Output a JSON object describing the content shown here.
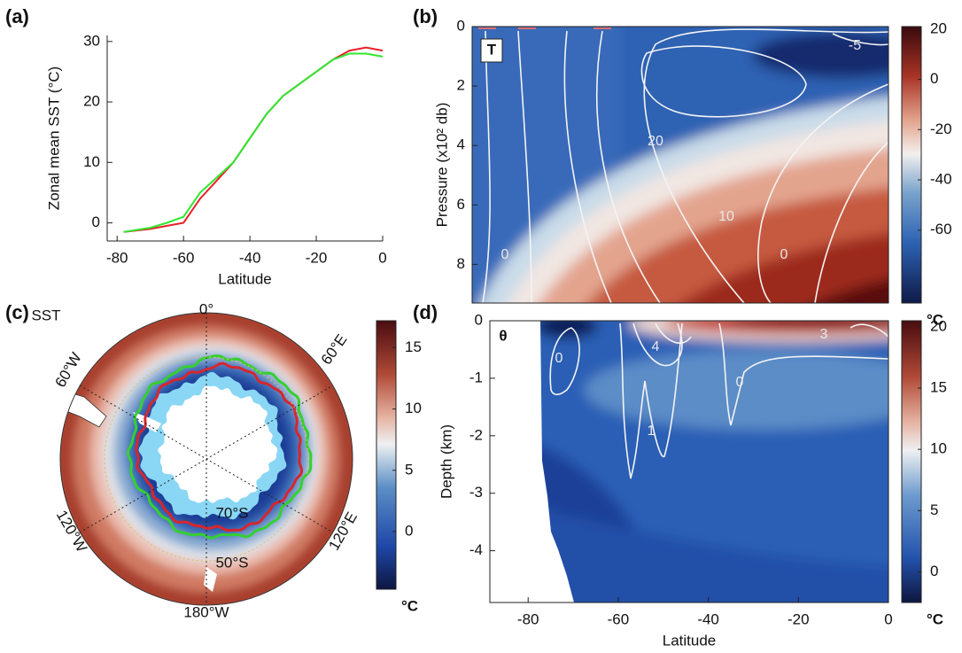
{
  "chart_data": [
    {
      "type": "line",
      "panel_label": "(a)",
      "x_label": "Latitude",
      "y_label": "Zonal mean SST (°C)",
      "x": [
        -78,
        -70,
        -65,
        -60,
        -55,
        -50,
        -45,
        -40,
        -35,
        -30,
        -25,
        -20,
        -15,
        -10,
        -5,
        0
      ],
      "series": [
        {
          "color": "#e8202a",
          "values": [
            -1.5,
            -1,
            -0.5,
            0,
            4,
            7,
            10,
            14,
            18,
            21,
            23,
            25,
            27,
            28.5,
            29,
            28.5
          ]
        },
        {
          "color": "#2ee82e",
          "values": [
            -1.5,
            -0.8,
            0,
            1,
            5,
            7.5,
            10,
            14,
            18,
            21,
            23,
            25,
            27,
            28,
            28,
            27.5
          ]
        }
      ],
      "xlim": [
        -83,
        0
      ],
      "ylim": [
        -3,
        31
      ],
      "xticks": [
        -80,
        -60,
        -40,
        -20,
        0
      ],
      "yticks": [
        0,
        10,
        20,
        30
      ]
    },
    {
      "type": "contour",
      "panel_label": "(b)",
      "field_label": "T",
      "y_label": "Pressure (x10² db)",
      "ylim": [
        0,
        9.3
      ],
      "y_inverted": true,
      "yticks": [
        0,
        2,
        4,
        6,
        8
      ],
      "contour_labels": [
        "-5",
        "20",
        "10",
        "0",
        "0"
      ],
      "colorbar": {
        "lim": [
          -89,
          21
        ],
        "ticks": [
          20,
          0,
          -20,
          -40,
          -60
        ],
        "label": "°C"
      }
    },
    {
      "type": "map",
      "panel_label": "(c)",
      "field_label": "SST",
      "map_labels": [
        "0°",
        "60°E",
        "120°E",
        "180°W",
        "120°W",
        "60°W",
        "70°S",
        "50°S"
      ],
      "contour_colors": [
        "#d7262e",
        "#35d02f"
      ],
      "colorbar": {
        "lim": [
          -4.7,
          17.2
        ],
        "ticks": [
          0,
          5,
          10,
          15
        ],
        "label": "°C"
      }
    },
    {
      "type": "contour",
      "panel_label": "(d)",
      "field_label": "θ",
      "x_label": "Latitude",
      "y_label": "Depth (km)",
      "xlim": [
        -88.5,
        0
      ],
      "xticks": [
        -80,
        -60,
        -40,
        -20,
        0
      ],
      "ylim": [
        -4.9,
        0
      ],
      "yticks": [
        0,
        -1,
        -2,
        -3,
        -4
      ],
      "contour_labels": [
        "0",
        "4",
        "0",
        "1",
        "3"
      ],
      "colorbar": {
        "lim": [
          -2.5,
          20.5
        ],
        "ticks": [
          0,
          5,
          10,
          15,
          20
        ],
        "label": "°C"
      }
    }
  ]
}
